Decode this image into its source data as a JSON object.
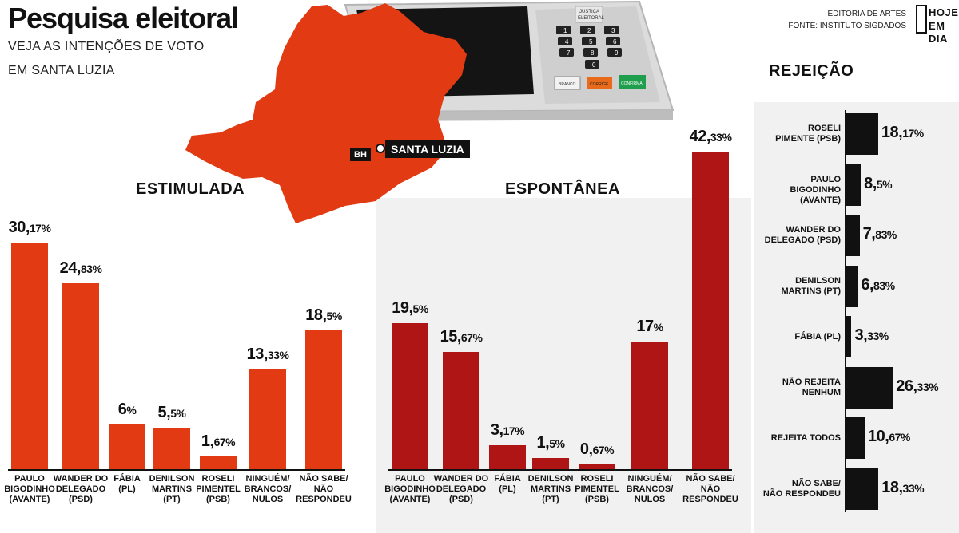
{
  "header": {
    "title": "Pesquisa eleitoral",
    "subtitle_line1": "VEJA AS INTENÇÕES DE VOTO",
    "subtitle_line2": "EM SANTA LUZIA",
    "credit_line1": "EDITORIA DE ARTES",
    "credit_line2": "FONTE: INSTITUTO SIGDADOS",
    "logo_line1": "HOJE",
    "logo_line2": "EM DIA"
  },
  "map": {
    "bh_label": "BH",
    "city_label": "SANTA LUZIA",
    "color": "#e23b13"
  },
  "ballot_box": {
    "label_line1": "JUSTIÇA",
    "label_line2": "ELEITORAL",
    "keys": [
      "1",
      "2",
      "3",
      "4",
      "5",
      "6",
      "7",
      "8",
      "9",
      "0"
    ],
    "btn_branco": "BRANCO",
    "btn_corrige": "CORRIGE",
    "btn_confirma": "CONFIRMA"
  },
  "colors": {
    "estimulada": "#e23b13",
    "espontanea": "#b01515",
    "rejeicao": "#111111"
  },
  "chart_data": [
    {
      "type": "bar",
      "title": "ESTIMULADA",
      "unit": "%",
      "categories": [
        "PAULO\nBIGODINHO\n(AVANTE)",
        "WANDER DO\nDELEGADO\n(PSD)",
        "FÁBIA\n(PL)",
        "DENILSON\nMARTINS\n(PT)",
        "ROSELI\nPIMENTEL\n(PSB)",
        "NINGUÉM/\nBRANCOS/\nNULOS",
        "NÃO SABE/\nNÃO RESPONDEU"
      ],
      "values": [
        30.17,
        24.83,
        6,
        5.5,
        1.67,
        13.33,
        18.5
      ],
      "labels": [
        [
          "30,",
          "17%"
        ],
        [
          "24,",
          "83%"
        ],
        [
          "6",
          "%"
        ],
        [
          "5,",
          "5%"
        ],
        [
          "1,",
          "67%"
        ],
        [
          "13,",
          "33%"
        ],
        [
          "18,",
          "5%"
        ]
      ]
    },
    {
      "type": "bar",
      "title": "ESPONTÂNEA",
      "unit": "%",
      "categories": [
        "PAULO\nBIGODINHO\n(AVANTE)",
        "WANDER DO\nDELEGADO\n(PSD)",
        "FÁBIA\n(PL)",
        "DENILSON\nMARTINS\n(PT)",
        "ROSELI\nPIMENTEL\n(PSB)",
        "NINGUÉM/\nBRANCOS/\nNULOS",
        "NÃO SABE/\nNÃO RESPONDEU"
      ],
      "values": [
        19.5,
        15.67,
        3.17,
        1.5,
        0.67,
        17,
        42.33
      ],
      "labels": [
        [
          "19,",
          "5%"
        ],
        [
          "15,",
          "67%"
        ],
        [
          "3,",
          "17%"
        ],
        [
          "1,",
          "5%"
        ],
        [
          "0,",
          "67%"
        ],
        [
          "17",
          "%"
        ],
        [
          "42,",
          "33%"
        ]
      ]
    },
    {
      "type": "bar",
      "orientation": "horizontal",
      "title": "REJEIÇÃO",
      "unit": "%",
      "categories": [
        "ROSELI\nPIMENTE (PSB)",
        "PAULO\nBIGODINHO (AVANTE)",
        "WANDER DO\nDELEGADO (PSD)",
        "DENILSON\nMARTINS (PT)",
        "FÁBIA (PL)",
        "NÃO REJEITA\nNENHUM",
        "REJEITA TODOS",
        "NÃO SABE/\nNÃO RESPONDEU"
      ],
      "values": [
        18.17,
        8.5,
        7.83,
        6.83,
        3.33,
        26.33,
        10.67,
        18.33
      ],
      "labels": [
        [
          "18,",
          "17%"
        ],
        [
          "8,",
          "5%"
        ],
        [
          "7,",
          "83%"
        ],
        [
          "6,",
          "83%"
        ],
        [
          "3,",
          "33%"
        ],
        [
          "26,",
          "33%"
        ],
        [
          "10,",
          "67%"
        ],
        [
          "18,",
          "33%"
        ]
      ]
    }
  ]
}
